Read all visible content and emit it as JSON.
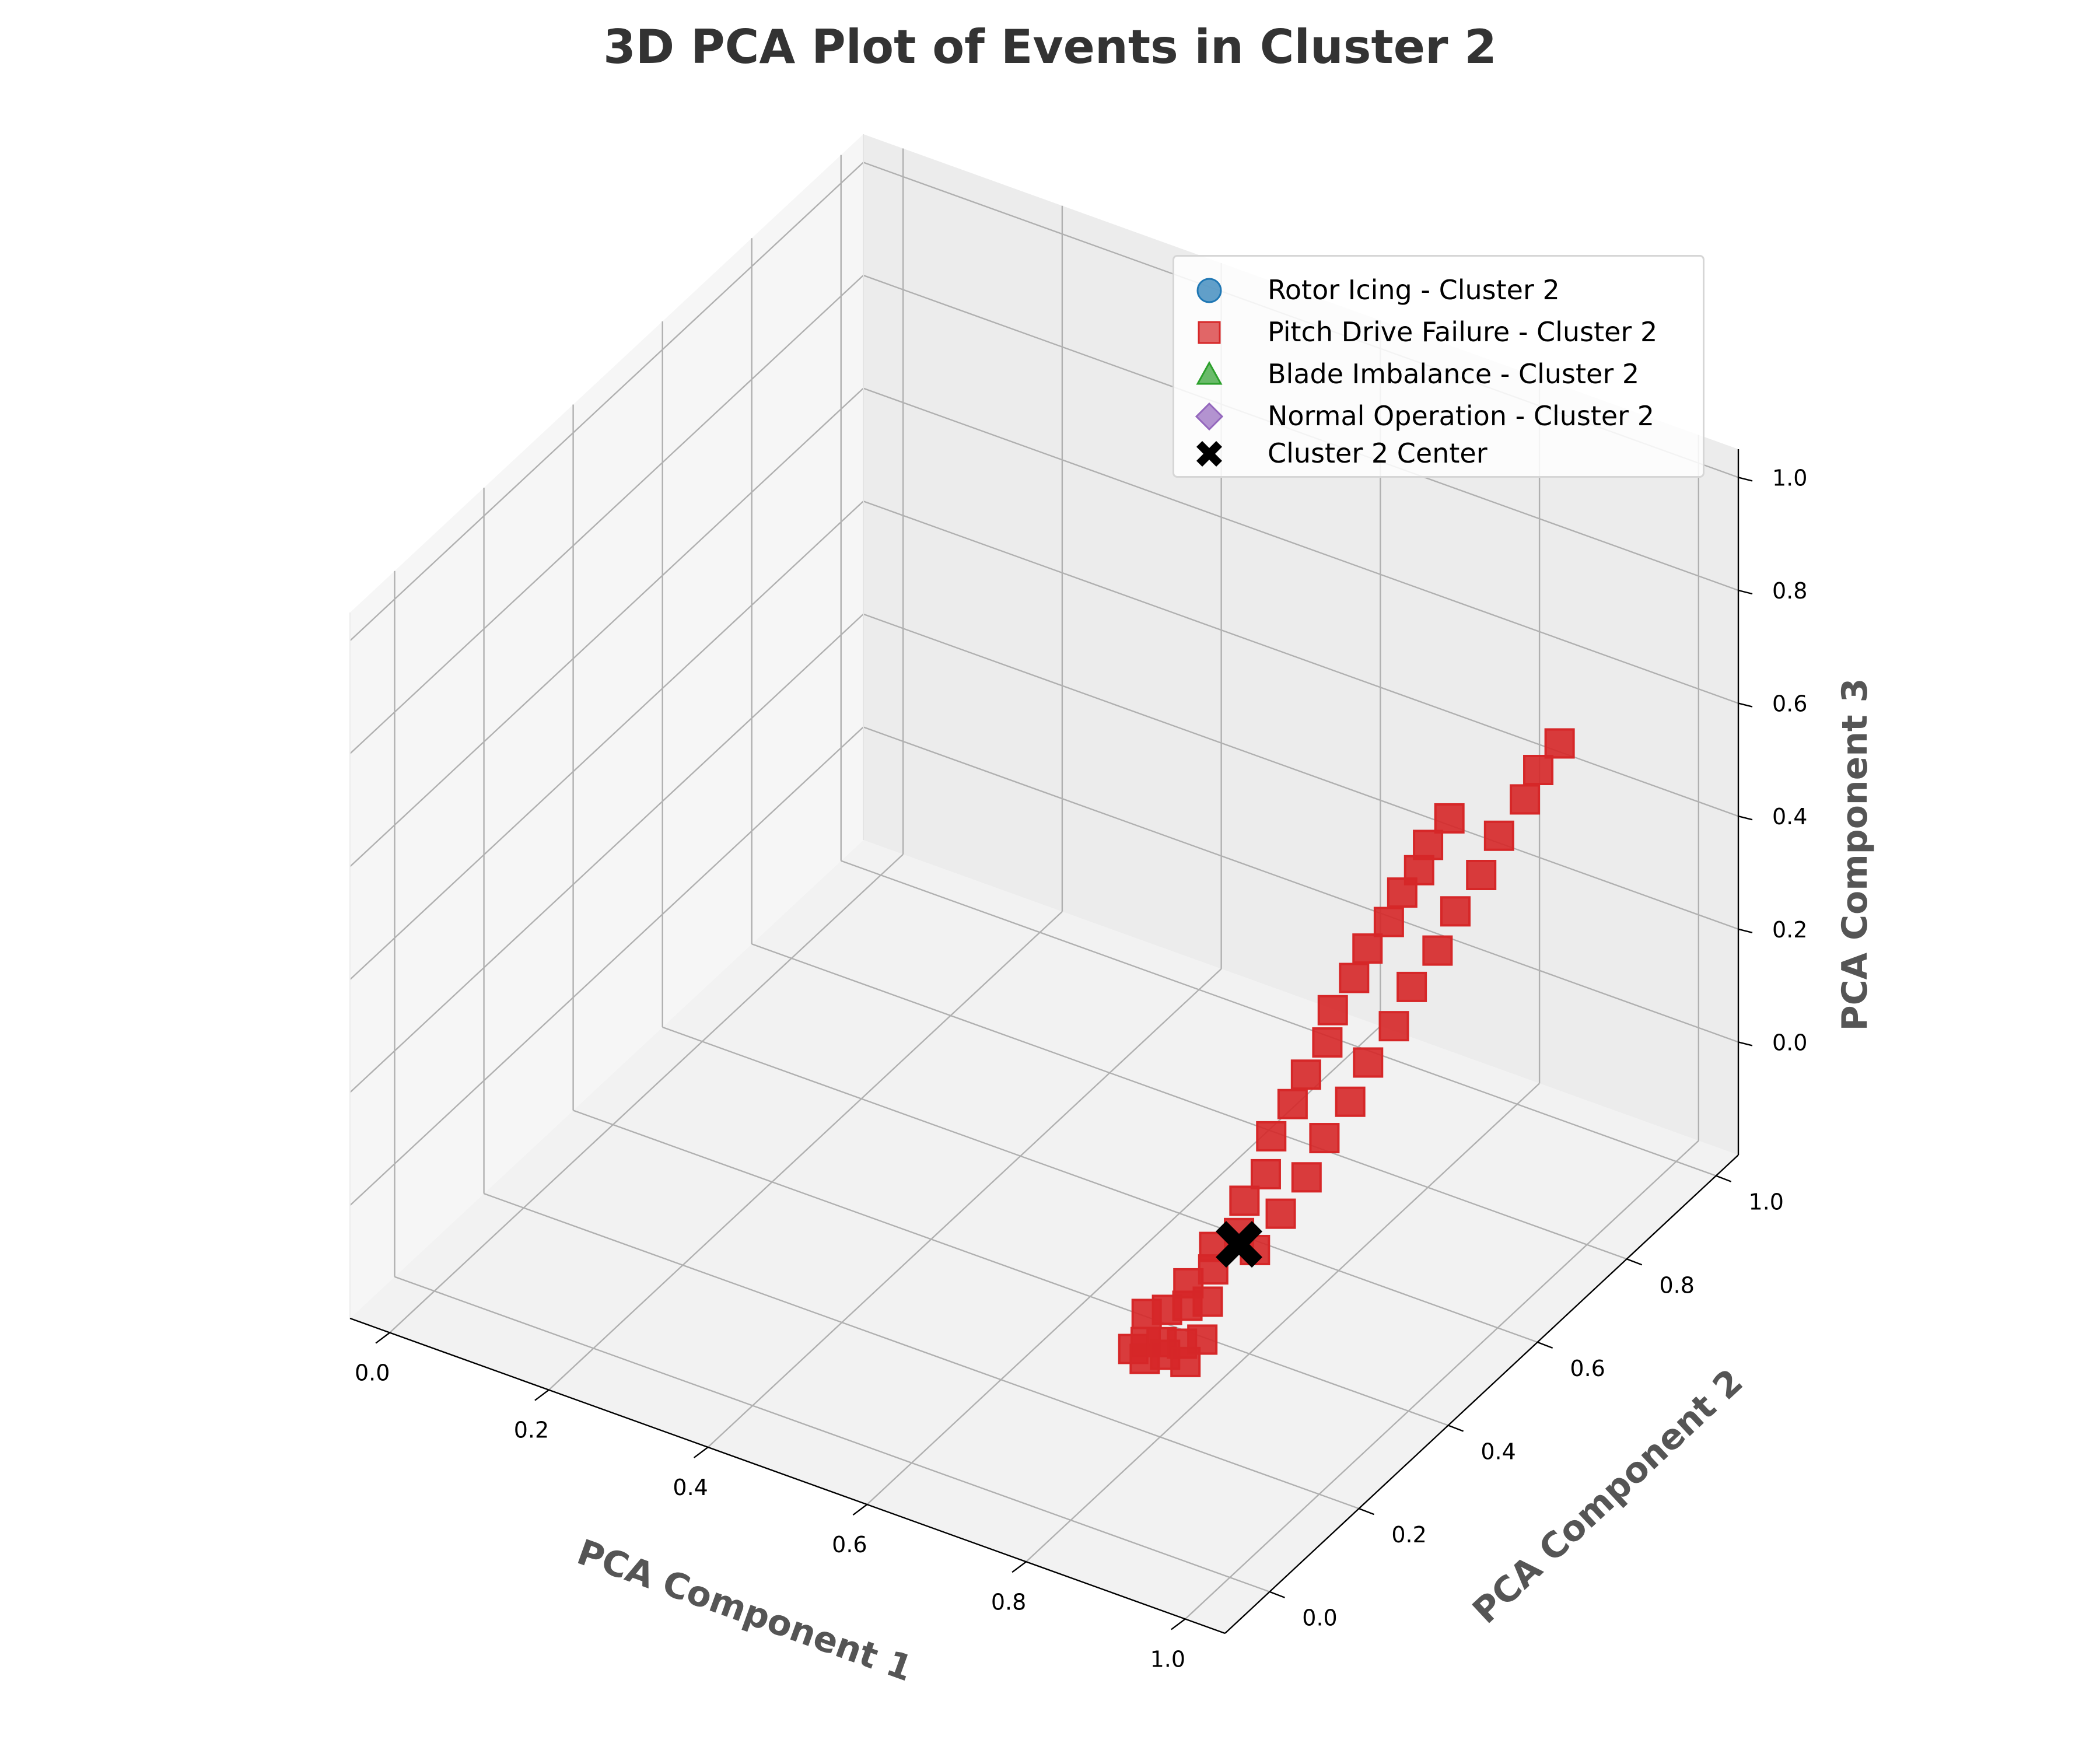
{
  "chart_data": {
    "type": "scatter",
    "projection": "3d",
    "title": "3D PCA Plot of Events in Cluster 2",
    "xlabel": "PCA Component 1",
    "ylabel": "PCA Component 2",
    "zlabel": "PCA Component 3",
    "xlim": [
      -0.05,
      1.05
    ],
    "ylim": [
      -0.1,
      1.05
    ],
    "zlim": [
      -0.2,
      1.05
    ],
    "xticks": [
      "0.0",
      "0.2",
      "0.4",
      "0.6",
      "0.8",
      "1.0"
    ],
    "yticks": [
      "0.0",
      "0.2",
      "0.4",
      "0.6",
      "0.8",
      "1.0"
    ],
    "zticks": [
      "0.0",
      "0.2",
      "0.4",
      "0.6",
      "0.8",
      "1.0"
    ],
    "grid": true,
    "legend_position": "top-right",
    "series": [
      {
        "name": "Rotor Icing - Cluster 2",
        "marker": "circle",
        "color": "#1f77b4",
        "points": []
      },
      {
        "name": "Pitch Drive Failure - Cluster 2",
        "marker": "square",
        "color": "#d62728",
        "points": [
          [
            0.8,
            0.14,
            0.0
          ],
          [
            0.81,
            0.15,
            0.01
          ],
          [
            0.82,
            0.13,
            0.0
          ],
          [
            0.83,
            0.15,
            0.02
          ],
          [
            0.84,
            0.14,
            0.01
          ],
          [
            0.85,
            0.16,
            0.02
          ],
          [
            0.86,
            0.15,
            0.0
          ],
          [
            0.87,
            0.17,
            0.03
          ],
          [
            0.8,
            0.17,
            0.04
          ],
          [
            0.82,
            0.18,
            0.05
          ],
          [
            0.84,
            0.19,
            0.06
          ],
          [
            0.86,
            0.2,
            0.07
          ],
          [
            0.83,
            0.21,
            0.08
          ],
          [
            0.85,
            0.23,
            0.1
          ],
          [
            0.84,
            0.25,
            0.12
          ],
          [
            0.86,
            0.27,
            0.14
          ],
          [
            0.85,
            0.3,
            0.17
          ],
          [
            0.86,
            0.33,
            0.2
          ],
          [
            0.85,
            0.36,
            0.24
          ],
          [
            0.86,
            0.39,
            0.28
          ],
          [
            0.86,
            0.42,
            0.31
          ],
          [
            0.87,
            0.45,
            0.35
          ],
          [
            0.86,
            0.48,
            0.38
          ],
          [
            0.87,
            0.51,
            0.42
          ],
          [
            0.87,
            0.54,
            0.45
          ],
          [
            0.88,
            0.57,
            0.48
          ],
          [
            0.88,
            0.6,
            0.51
          ],
          [
            0.89,
            0.62,
            0.54
          ],
          [
            0.89,
            0.64,
            0.57
          ],
          [
            0.9,
            0.67,
            0.6
          ],
          [
            0.88,
            0.27,
            0.12
          ],
          [
            0.89,
            0.31,
            0.16
          ],
          [
            0.9,
            0.35,
            0.2
          ],
          [
            0.9,
            0.39,
            0.24
          ],
          [
            0.91,
            0.43,
            0.28
          ],
          [
            0.91,
            0.47,
            0.32
          ],
          [
            0.92,
            0.51,
            0.36
          ],
          [
            0.92,
            0.55,
            0.4
          ],
          [
            0.93,
            0.59,
            0.44
          ],
          [
            0.93,
            0.63,
            0.48
          ],
          [
            0.94,
            0.67,
            0.52
          ],
          [
            0.94,
            0.71,
            0.56
          ],
          [
            0.95,
            0.75,
            0.6
          ],
          [
            0.95,
            0.78,
            0.63
          ],
          [
            0.96,
            0.81,
            0.66
          ]
        ]
      },
      {
        "name": "Blade Imbalance - Cluster 2",
        "marker": "triangle",
        "color": "#2ca02c",
        "points": []
      },
      {
        "name": "Normal Operation - Cluster 2",
        "marker": "diamond",
        "color": "#9467bd",
        "points": []
      },
      {
        "name": "Cluster 2 Center",
        "marker": "x",
        "color": "#000000",
        "points": [
          [
            0.86,
            0.27,
            0.12
          ]
        ]
      }
    ]
  }
}
